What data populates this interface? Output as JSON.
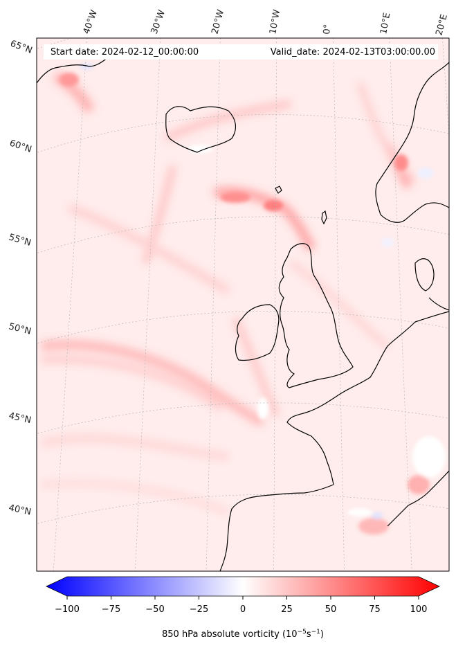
{
  "header": {
    "start_date": "Start date: 2024-02-12_00:00:00",
    "valid_date": "Valid_date: 2024-02-13T03:00:00.00"
  },
  "longitude_labels": [
    "40°W",
    "30°W",
    "20°W",
    "10°W",
    "0°",
    "10°E",
    "20°E"
  ],
  "latitude_labels": [
    "65°N",
    "60°N",
    "55°N",
    "50°N",
    "45°N",
    "40°N"
  ],
  "colorbar": {
    "title": "850 hPa absolute vorticity (10",
    "title_exp": "−5",
    "title_mid": "s",
    "title_exp2": "−1",
    "title_end": ")",
    "min": -100,
    "max": 100,
    "ticks": [
      "−100",
      "−75",
      "−50",
      "−25",
      "0",
      "25",
      "50",
      "75",
      "100"
    ],
    "colors": {
      "negative": "#0000ff",
      "zero": "#ffffff",
      "positive": "#ff0000"
    }
  },
  "map_style": {
    "background": "#ffeced",
    "coastline": "#000000",
    "gridline": "#b0b0b0"
  }
}
